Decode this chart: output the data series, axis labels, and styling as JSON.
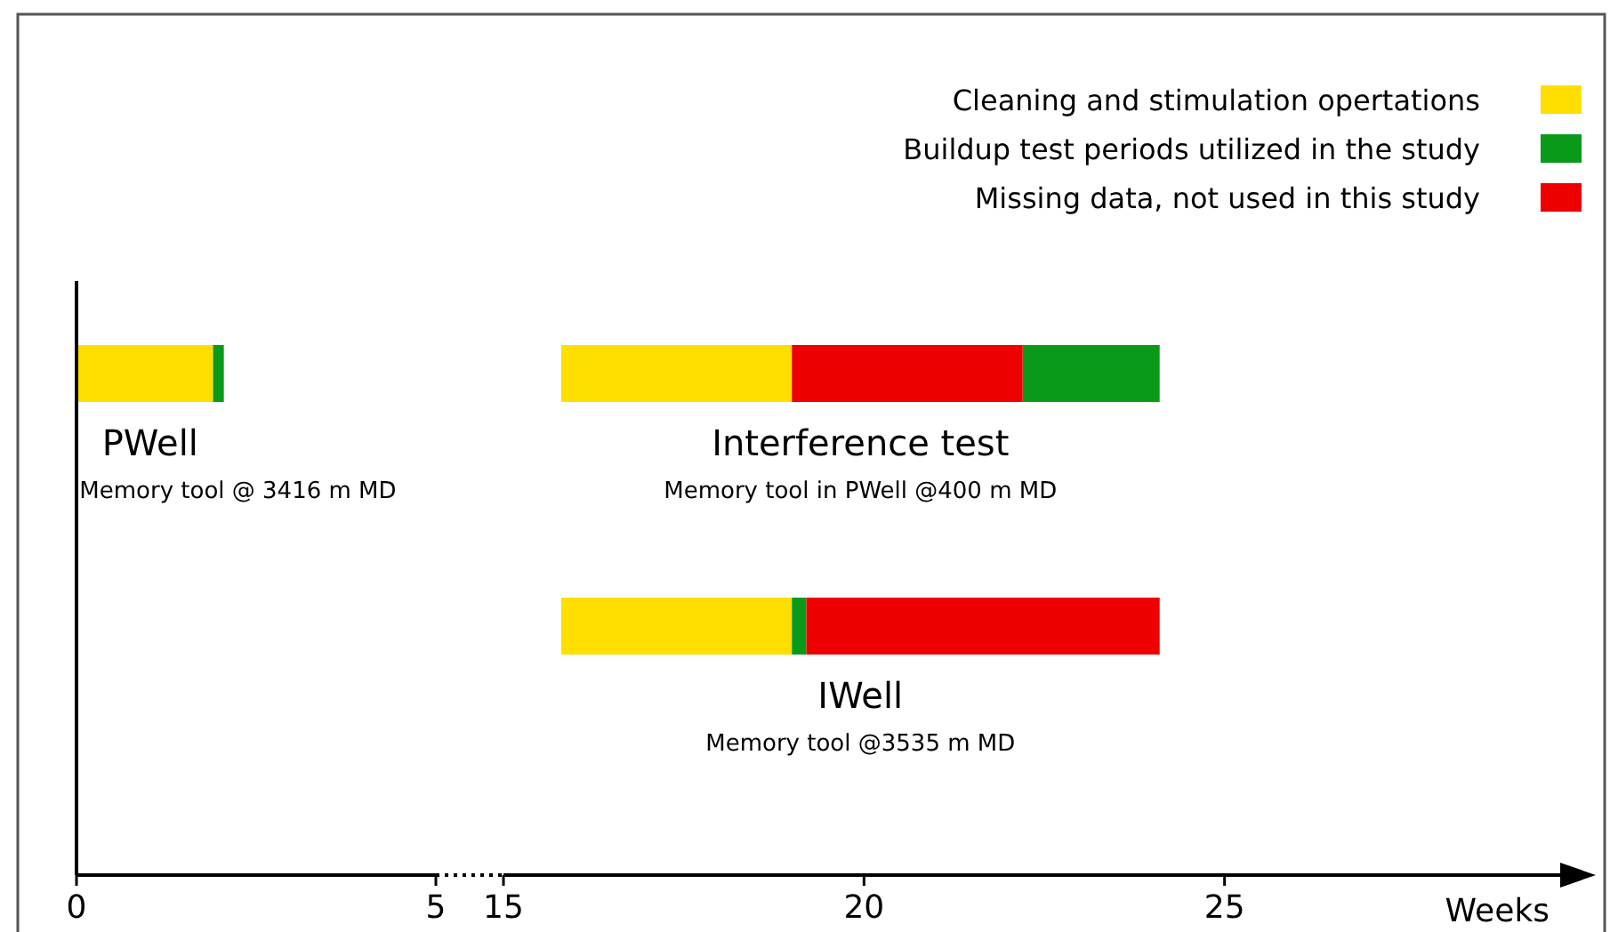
{
  "chart_data": [
    {
      "type": "bar",
      "orientation": "horizontal",
      "categories": [
        null,
        null
      ],
      "xlim": [
        0,
        5
      ],
      "xticks": [
        0,
        5
      ],
      "series": [
        {
          "color": "#ffde00",
          "base": [
            0,
            null
          ],
          "values": [
            1.9,
            null
          ]
        },
        {
          "color": "#0a9a1a",
          "base": [
            1.9,
            null
          ],
          "values": [
            0.15,
            null
          ]
        }
      ],
      "annotations": [
        "PWell",
        "Memory tool @ 3416 m MD"
      ]
    },
    {
      "type": "bar",
      "orientation": "horizontal",
      "categories": [
        null,
        null
      ],
      "xlim": [
        15,
        30
      ],
      "xticks": [
        15,
        20,
        25
      ],
      "xlabel": "Weeks",
      "legend": "top right",
      "series": [
        {
          "name": "Cleaning and stimulation opertations",
          "color": "#ffde00",
          "base": [
            15.8,
            15.8
          ],
          "values": [
            3.2,
            3.2
          ]
        },
        {
          "name": "Buildup test periods utilized in the study",
          "color": "#0a9a1a",
          "base": [
            22.2,
            19.0
          ],
          "values": [
            1.9,
            0.2
          ]
        },
        {
          "name": "Missing data, not used in this study",
          "color": "#ee0000",
          "base": [
            19.0,
            19.2
          ],
          "values": [
            3.2,
            4.9
          ]
        }
      ],
      "annotations": [
        "Interference test",
        "Memory tool in PWell @400 m MD",
        "IWell",
        "Memory tool @3535 m MD"
      ]
    }
  ]
}
